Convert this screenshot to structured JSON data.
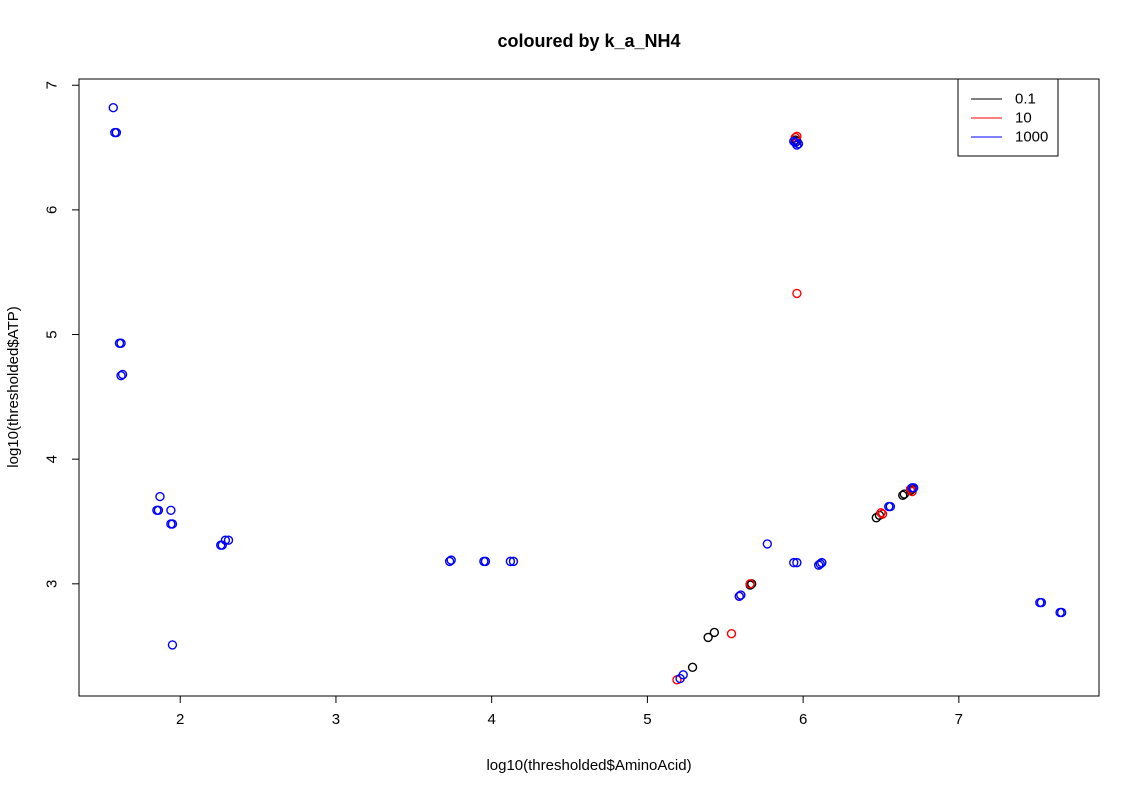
{
  "chart_data": {
    "type": "scatter",
    "title": "coloured by k_a_NH4",
    "xlabel": "log10(thresholded$AminoAcid)",
    "ylabel": "log10(thresholded$ATP)",
    "xlim": [
      1.35,
      7.9
    ],
    "ylim": [
      2.1,
      7.05
    ],
    "xticks": [
      2,
      3,
      4,
      5,
      6,
      7
    ],
    "yticks": [
      3,
      4,
      5,
      6,
      7
    ],
    "legend_position": "top-right",
    "legend": [
      {
        "label": "0.1",
        "color": "#000000"
      },
      {
        "label": "10",
        "color": "#ff0000"
      },
      {
        "label": "1000",
        "color": "#0000ff"
      }
    ],
    "series": [
      {
        "legend_label": "0.1",
        "color": "#000000",
        "points": [
          [
            5.39,
            2.57
          ],
          [
            5.43,
            2.61
          ],
          [
            5.29,
            2.33
          ],
          [
            5.66,
            2.99
          ],
          [
            5.67,
            3.0
          ],
          [
            6.47,
            3.53
          ],
          [
            6.49,
            3.55
          ],
          [
            6.64,
            3.71
          ],
          [
            6.65,
            3.72
          ],
          [
            6.69,
            3.75
          ],
          [
            6.7,
            3.76
          ],
          [
            5.95,
            6.56
          ],
          [
            5.96,
            6.55
          ]
        ]
      },
      {
        "legend_label": "10",
        "color": "#ff0000",
        "points": [
          [
            5.19,
            2.23
          ],
          [
            5.54,
            2.6
          ],
          [
            5.95,
            6.58
          ],
          [
            5.96,
            6.59
          ],
          [
            5.96,
            5.33
          ],
          [
            6.51,
            3.56
          ],
          [
            6.5,
            3.57
          ],
          [
            6.69,
            3.76
          ],
          [
            6.7,
            3.74
          ],
          [
            5.59,
            2.9
          ],
          [
            5.66,
            3.0
          ]
        ]
      },
      {
        "legend_label": "1000",
        "color": "#0000ff",
        "points": [
          [
            1.57,
            6.82
          ],
          [
            1.58,
            6.62
          ],
          [
            1.59,
            6.62
          ],
          [
            1.61,
            4.93
          ],
          [
            1.62,
            4.93
          ],
          [
            1.62,
            4.67
          ],
          [
            1.63,
            4.68
          ],
          [
            1.85,
            3.59
          ],
          [
            1.86,
            3.59
          ],
          [
            1.87,
            3.7
          ],
          [
            1.94,
            3.59
          ],
          [
            1.95,
            3.48
          ],
          [
            1.94,
            3.48
          ],
          [
            1.95,
            2.51
          ],
          [
            2.26,
            3.31
          ],
          [
            2.27,
            3.31
          ],
          [
            2.29,
            3.35
          ],
          [
            2.31,
            3.35
          ],
          [
            3.73,
            3.18
          ],
          [
            3.74,
            3.19
          ],
          [
            3.95,
            3.18
          ],
          [
            3.96,
            3.18
          ],
          [
            4.12,
            3.18
          ],
          [
            4.14,
            3.18
          ],
          [
            5.21,
            2.24
          ],
          [
            5.23,
            2.27
          ],
          [
            5.59,
            2.9
          ],
          [
            5.6,
            2.91
          ],
          [
            5.77,
            3.32
          ],
          [
            5.94,
            3.17
          ],
          [
            5.96,
            3.17
          ],
          [
            5.94,
            6.55
          ],
          [
            5.95,
            6.54
          ],
          [
            5.96,
            6.52
          ],
          [
            5.97,
            6.53
          ],
          [
            6.1,
            3.15
          ],
          [
            6.11,
            3.16
          ],
          [
            6.12,
            3.17
          ],
          [
            6.55,
            3.62
          ],
          [
            6.56,
            3.62
          ],
          [
            6.7,
            3.77
          ],
          [
            6.71,
            3.77
          ],
          [
            7.52,
            2.85
          ],
          [
            7.53,
            2.85
          ],
          [
            7.65,
            2.77
          ],
          [
            7.66,
            2.77
          ]
        ]
      }
    ]
  }
}
